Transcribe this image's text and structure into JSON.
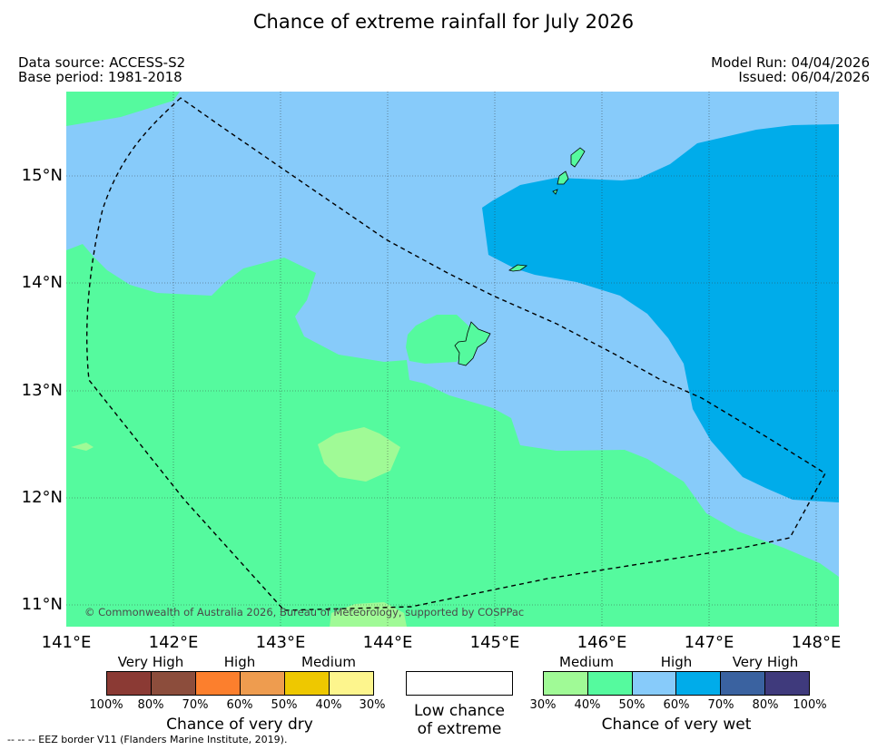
{
  "title": "Chance of extreme rainfall for July 2026",
  "metadata": {
    "data_source": "Data source: ACCESS-S2",
    "base_period": "Base period: 1981-2018",
    "model_run": "Model Run: 04/04/2026",
    "issued": "Issued: 06/04/2026"
  },
  "map": {
    "copyright": "© Commonwealth of Australia 2026, Bureau of Meteorology, supported by COSPPac",
    "lat_ticks": [
      "15°N",
      "14°N",
      "13°N",
      "12°N",
      "11°N"
    ],
    "lon_ticks": [
      "141°E",
      "142°E",
      "143°E",
      "144°E",
      "145°E",
      "146°E",
      "147°E",
      "148°E"
    ],
    "colors": {
      "wet_medium": "#a0fa96",
      "wet_medium_high": "#55fa9e",
      "wet_high": "#87cbfa",
      "wet_high_strong": "#00acea",
      "border_line": "#000000"
    }
  },
  "legend": {
    "dry": {
      "categories": [
        "Very High",
        "High",
        "Medium"
      ],
      "colors": [
        "#8b3a34",
        "#8c4d3c",
        "#fc7f2d",
        "#ee9c4f",
        "#eec800",
        "#fdf58d"
      ],
      "percentages": [
        "100%",
        "80%",
        "70%",
        "60%",
        "50%",
        "40%",
        "30%"
      ],
      "title": "Chance of very dry"
    },
    "neutral": {
      "title_line1": "Low chance",
      "title_line2": "of extreme",
      "color": "#ffffff"
    },
    "wet": {
      "categories": [
        "Medium",
        "High",
        "Very High"
      ],
      "colors": [
        "#a0fa96",
        "#55fa9e",
        "#87cbfa",
        "#00acea",
        "#3a62a0",
        "#3f3a7c"
      ],
      "percentages": [
        "30%",
        "40%",
        "50%",
        "60%",
        "70%",
        "80%",
        "100%"
      ],
      "title": "Chance of very wet"
    }
  },
  "footnote": "--  --  -- EEZ border V11 (Flanders Marine Institute, 2019)."
}
